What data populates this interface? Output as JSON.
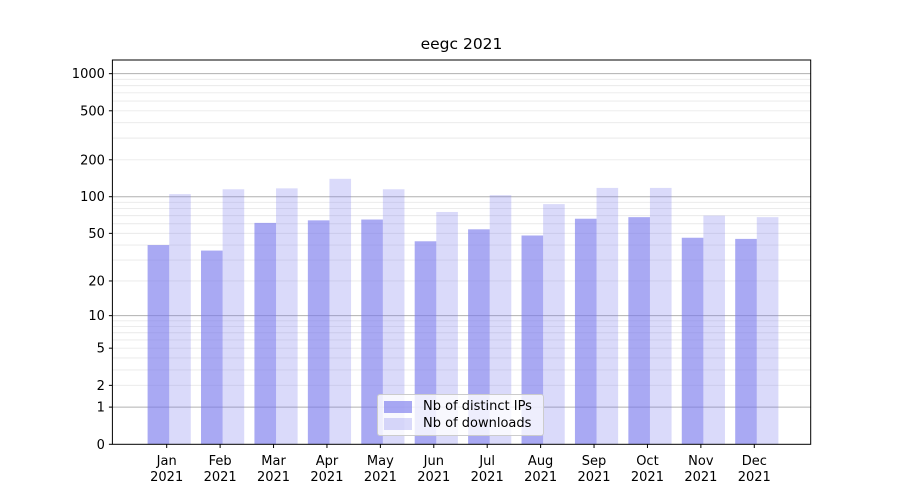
{
  "chart_data": {
    "type": "bar",
    "title": "eegc 2021",
    "categories": [
      "Jan 2021",
      "Feb 2021",
      "Mar 2021",
      "Apr 2021",
      "May 2021",
      "Jun 2021",
      "Jul 2021",
      "Aug 2021",
      "Sep 2021",
      "Oct 2021",
      "Nov 2021",
      "Dec 2021"
    ],
    "series": [
      {
        "name": "Nb of distinct IPs",
        "color": "#7979ed",
        "opacity": 0.64,
        "values": [
          40,
          36,
          61,
          64,
          65,
          43,
          54,
          48,
          66,
          68,
          46,
          45
        ]
      },
      {
        "name": "Nb of downloads",
        "color": "#7979ed",
        "opacity": 0.28,
        "values": [
          105,
          115,
          117,
          140,
          115,
          75,
          103,
          87,
          118,
          118,
          70,
          68
        ]
      }
    ],
    "y_scale": "log1p",
    "ylim": [
      0,
      1300
    ],
    "y_tick_labels": [
      "0",
      "1",
      "2",
      "5",
      "10",
      "20",
      "50",
      "100",
      "200",
      "500",
      "1000"
    ],
    "y_ticks": [
      0,
      1,
      2,
      5,
      10,
      20,
      50,
      100,
      200,
      500,
      1000
    ],
    "y_major_gridlines": [
      1,
      10,
      100,
      1000
    ],
    "y_minor_gridlines": [
      2,
      3,
      4,
      5,
      6,
      7,
      8,
      9,
      20,
      30,
      40,
      50,
      60,
      70,
      80,
      90,
      200,
      300,
      400,
      500,
      600,
      700,
      800,
      900
    ],
    "xlabel": "",
    "ylabel": "",
    "grid": true,
    "legend_position": "lower center"
  },
  "colors": {
    "background": "#ffffff",
    "axis": "#000000",
    "major_grid": "#b0b0b0",
    "minor_grid": "#e9e9e9",
    "legend_border": "#cccccc",
    "text": "#000000"
  }
}
